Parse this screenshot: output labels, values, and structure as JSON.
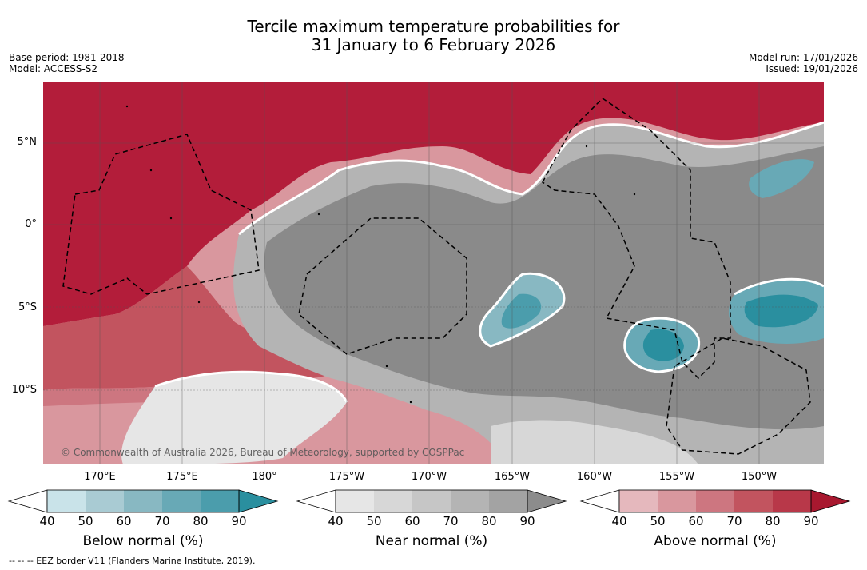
{
  "title_line1": "Tercile maximum temperature probabilities for",
  "title_line2": "31 January to 6 February 2026",
  "meta_left": {
    "base_period": "Base period: 1981-2018",
    "model": "Model: ACCESS-S2"
  },
  "meta_right": {
    "model_run": "Model run: 17/01/2026",
    "issued": "Issued: 19/01/2026"
  },
  "credit": "© Commonwealth of Australia 2026, Bureau of Meteorology, supported by COSPPac",
  "lat_labels": [
    "5°N",
    "0°",
    "5°S",
    "10°S"
  ],
  "lon_labels": [
    "170°E",
    "175°E",
    "180°",
    "175°W",
    "170°W",
    "165°W",
    "160°W",
    "155°W",
    "150°W"
  ],
  "colorbars": [
    {
      "title": "Below normal (%)",
      "ticks": [
        "40",
        "50",
        "60",
        "70",
        "80",
        "90"
      ],
      "colors": [
        "#c9e3e9",
        "#a9cbd3",
        "#88b8c2",
        "#68a9b6",
        "#4b9dac",
        "#2a8f9f"
      ]
    },
    {
      "title": "Near normal (%)",
      "ticks": [
        "40",
        "50",
        "60",
        "70",
        "80",
        "90"
      ],
      "colors": [
        "#e6e6e6",
        "#d7d7d7",
        "#c6c6c6",
        "#b4b4b4",
        "#a3a3a3",
        "#8c8c8c"
      ]
    },
    {
      "title": "Above normal (%)",
      "ticks": [
        "40",
        "50",
        "60",
        "70",
        "80",
        "90"
      ],
      "colors": [
        "#e5b8bd",
        "#d9979e",
        "#cd7680",
        "#c2545f",
        "#b83849",
        "#a8182f"
      ]
    }
  ],
  "footnote": "--  --  -- EEZ border V11 (Flanders Marine Institute, 2019).",
  "colors": {
    "above_high": "#b31d3a",
    "near_normal": "#8a8a8a",
    "below_high": "#2a8f9f"
  }
}
